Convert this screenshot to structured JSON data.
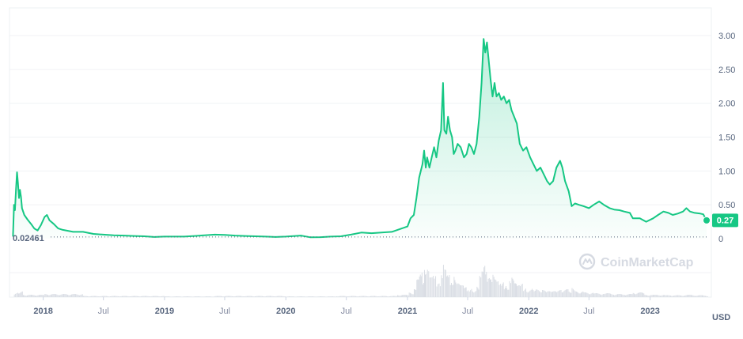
{
  "chart_data": {
    "type": "area",
    "x_format": "YYYY-MM-DD",
    "ylim": [
      0,
      3.0
    ],
    "y_ticks": [
      "0",
      "0.50",
      "1.00",
      "1.50",
      "2.00",
      "2.50",
      "3.00"
    ],
    "y_tick_values": [
      0,
      0.5,
      1.0,
      1.5,
      2.0,
      2.5,
      3.0
    ],
    "x_ticks": [
      {
        "label": "2018",
        "date": "2018-01-01",
        "major": true
      },
      {
        "label": "Jul",
        "date": "2018-07-01",
        "major": false
      },
      {
        "label": "2019",
        "date": "2019-01-01",
        "major": true
      },
      {
        "label": "Jul",
        "date": "2019-07-01",
        "major": false
      },
      {
        "label": "2020",
        "date": "2020-01-01",
        "major": true
      },
      {
        "label": "Jul",
        "date": "2020-07-01",
        "major": false
      },
      {
        "label": "2021",
        "date": "2021-01-01",
        "major": true
      },
      {
        "label": "Jul",
        "date": "2021-07-01",
        "major": false
      },
      {
        "label": "2022",
        "date": "2022-01-01",
        "major": true
      },
      {
        "label": "Jul",
        "date": "2022-07-01",
        "major": false
      },
      {
        "label": "2023",
        "date": "2023-01-01",
        "major": true
      }
    ],
    "x_range": [
      "2017-10-01",
      "2023-06-20"
    ],
    "unit": "USD",
    "reference_line": {
      "label": "0.02461",
      "value": 0.02461
    },
    "current_price": {
      "label": "0.27",
      "value": 0.27
    },
    "line_color": "#16c784",
    "grid": true,
    "series": [
      {
        "points": [
          [
            "2017-10-02",
            0.03
          ],
          [
            "2017-10-05",
            0.5
          ],
          [
            "2017-10-08",
            0.42
          ],
          [
            "2017-10-11",
            0.72
          ],
          [
            "2017-10-14",
            0.98
          ],
          [
            "2017-10-17",
            0.82
          ],
          [
            "2017-10-20",
            0.6
          ],
          [
            "2017-10-23",
            0.72
          ],
          [
            "2017-10-26",
            0.62
          ],
          [
            "2017-10-29",
            0.45
          ],
          [
            "2017-11-05",
            0.35
          ],
          [
            "2017-11-15",
            0.28
          ],
          [
            "2017-11-25",
            0.22
          ],
          [
            "2017-12-05",
            0.15
          ],
          [
            "2017-12-15",
            0.12
          ],
          [
            "2017-12-25",
            0.2
          ],
          [
            "2018-01-05",
            0.32
          ],
          [
            "2018-01-12",
            0.35
          ],
          [
            "2018-01-20",
            0.27
          ],
          [
            "2018-02-01",
            0.22
          ],
          [
            "2018-02-15",
            0.15
          ],
          [
            "2018-03-01",
            0.13
          ],
          [
            "2018-04-01",
            0.1
          ],
          [
            "2018-05-01",
            0.1
          ],
          [
            "2018-06-01",
            0.07
          ],
          [
            "2018-07-01",
            0.06
          ],
          [
            "2018-08-01",
            0.05
          ],
          [
            "2018-09-01",
            0.045
          ],
          [
            "2018-10-01",
            0.04
          ],
          [
            "2018-11-01",
            0.035
          ],
          [
            "2018-12-01",
            0.025
          ],
          [
            "2019-01-01",
            0.03
          ],
          [
            "2019-02-01",
            0.03
          ],
          [
            "2019-03-01",
            0.03
          ],
          [
            "2019-04-01",
            0.04
          ],
          [
            "2019-05-01",
            0.05
          ],
          [
            "2019-06-01",
            0.06
          ],
          [
            "2019-07-01",
            0.055
          ],
          [
            "2019-08-01",
            0.045
          ],
          [
            "2019-09-01",
            0.04
          ],
          [
            "2019-10-01",
            0.035
          ],
          [
            "2019-11-01",
            0.03
          ],
          [
            "2019-12-01",
            0.025
          ],
          [
            "2020-01-01",
            0.03
          ],
          [
            "2020-02-15",
            0.045
          ],
          [
            "2020-03-15",
            0.02
          ],
          [
            "2020-04-15",
            0.022
          ],
          [
            "2020-05-15",
            0.03
          ],
          [
            "2020-06-15",
            0.035
          ],
          [
            "2020-07-15",
            0.06
          ],
          [
            "2020-08-15",
            0.09
          ],
          [
            "2020-09-15",
            0.08
          ],
          [
            "2020-10-15",
            0.09
          ],
          [
            "2020-11-15",
            0.1
          ],
          [
            "2020-12-15",
            0.15
          ],
          [
            "2021-01-01",
            0.18
          ],
          [
            "2021-01-10",
            0.3
          ],
          [
            "2021-01-20",
            0.35
          ],
          [
            "2021-01-28",
            0.6
          ],
          [
            "2021-02-05",
            0.9
          ],
          [
            "2021-02-15",
            1.1
          ],
          [
            "2021-02-20",
            1.3
          ],
          [
            "2021-02-25",
            1.05
          ],
          [
            "2021-03-01",
            1.2
          ],
          [
            "2021-03-08",
            1.05
          ],
          [
            "2021-03-15",
            1.2
          ],
          [
            "2021-03-22",
            1.35
          ],
          [
            "2021-03-29",
            1.2
          ],
          [
            "2021-04-05",
            1.45
          ],
          [
            "2021-04-12",
            1.6
          ],
          [
            "2021-04-18",
            2.3
          ],
          [
            "2021-04-22",
            1.6
          ],
          [
            "2021-04-28",
            1.55
          ],
          [
            "2021-05-03",
            1.8
          ],
          [
            "2021-05-09",
            1.6
          ],
          [
            "2021-05-15",
            1.5
          ],
          [
            "2021-05-20",
            1.25
          ],
          [
            "2021-05-25",
            1.3
          ],
          [
            "2021-06-01",
            1.4
          ],
          [
            "2021-06-10",
            1.35
          ],
          [
            "2021-06-20",
            1.2
          ],
          [
            "2021-06-28",
            1.25
          ],
          [
            "2021-07-05",
            1.4
          ],
          [
            "2021-07-12",
            1.35
          ],
          [
            "2021-07-20",
            1.25
          ],
          [
            "2021-07-28",
            1.4
          ],
          [
            "2021-08-05",
            1.8
          ],
          [
            "2021-08-12",
            2.3
          ],
          [
            "2021-08-18",
            2.95
          ],
          [
            "2021-08-23",
            2.75
          ],
          [
            "2021-08-28",
            2.9
          ],
          [
            "2021-09-03",
            2.6
          ],
          [
            "2021-09-08",
            2.35
          ],
          [
            "2021-09-14",
            2.1
          ],
          [
            "2021-09-20",
            2.3
          ],
          [
            "2021-09-26",
            2.1
          ],
          [
            "2021-10-03",
            2.15
          ],
          [
            "2021-10-10",
            2.05
          ],
          [
            "2021-10-18",
            2.1
          ],
          [
            "2021-10-26",
            2.0
          ],
          [
            "2021-11-03",
            2.05
          ],
          [
            "2021-11-10",
            1.9
          ],
          [
            "2021-11-18",
            1.8
          ],
          [
            "2021-11-26",
            1.7
          ],
          [
            "2021-12-05",
            1.4
          ],
          [
            "2021-12-15",
            1.3
          ],
          [
            "2021-12-25",
            1.35
          ],
          [
            "2022-01-05",
            1.2
          ],
          [
            "2022-01-15",
            1.1
          ],
          [
            "2022-01-25",
            1.0
          ],
          [
            "2022-02-05",
            1.05
          ],
          [
            "2022-02-15",
            0.95
          ],
          [
            "2022-02-25",
            0.85
          ],
          [
            "2022-03-05",
            0.8
          ],
          [
            "2022-03-15",
            0.85
          ],
          [
            "2022-03-25",
            1.05
          ],
          [
            "2022-04-05",
            1.15
          ],
          [
            "2022-04-12",
            1.05
          ],
          [
            "2022-04-20",
            0.85
          ],
          [
            "2022-05-01",
            0.7
          ],
          [
            "2022-05-10",
            0.48
          ],
          [
            "2022-05-20",
            0.52
          ],
          [
            "2022-06-01",
            0.5
          ],
          [
            "2022-06-15",
            0.48
          ],
          [
            "2022-07-01",
            0.45
          ],
          [
            "2022-07-15",
            0.5
          ],
          [
            "2022-08-01",
            0.55
          ],
          [
            "2022-08-15",
            0.5
          ],
          [
            "2022-09-01",
            0.45
          ],
          [
            "2022-09-15",
            0.43
          ],
          [
            "2022-10-01",
            0.42
          ],
          [
            "2022-10-15",
            0.4
          ],
          [
            "2022-11-01",
            0.38
          ],
          [
            "2022-11-10",
            0.3
          ],
          [
            "2022-12-01",
            0.3
          ],
          [
            "2022-12-20",
            0.25
          ],
          [
            "2023-01-10",
            0.3
          ],
          [
            "2023-01-25",
            0.35
          ],
          [
            "2023-02-10",
            0.4
          ],
          [
            "2023-02-25",
            0.38
          ],
          [
            "2023-03-10",
            0.35
          ],
          [
            "2023-03-25",
            0.37
          ],
          [
            "2023-04-10",
            0.4
          ],
          [
            "2023-04-20",
            0.45
          ],
          [
            "2023-05-01",
            0.4
          ],
          [
            "2023-05-15",
            0.38
          ],
          [
            "2023-06-01",
            0.37
          ],
          [
            "2023-06-10",
            0.36
          ],
          [
            "2023-06-20",
            0.27
          ]
        ]
      }
    ],
    "volume": {
      "color": "#d9dde4",
      "points": [
        [
          "2017-10-05",
          0.12
        ],
        [
          "2017-10-15",
          0.15
        ],
        [
          "2017-11-01",
          0.06
        ],
        [
          "2018-01-05",
          0.08
        ],
        [
          "2018-05-01",
          0.03
        ],
        [
          "2019-01-01",
          0.02
        ],
        [
          "2019-06-01",
          0.03
        ],
        [
          "2020-01-01",
          0.02
        ],
        [
          "2020-06-01",
          0.03
        ],
        [
          "2020-12-01",
          0.06
        ],
        [
          "2021-01-05",
          0.12
        ],
        [
          "2021-01-20",
          0.2
        ],
        [
          "2021-01-28",
          0.45
        ],
        [
          "2021-02-05",
          0.6
        ],
        [
          "2021-02-10",
          0.75
        ],
        [
          "2021-02-15",
          0.55
        ],
        [
          "2021-02-20",
          0.9
        ],
        [
          "2021-02-25",
          0.65
        ],
        [
          "2021-03-01",
          0.7
        ],
        [
          "2021-03-08",
          0.5
        ],
        [
          "2021-03-15",
          0.55
        ],
        [
          "2021-03-22",
          0.6
        ],
        [
          "2021-03-29",
          0.45
        ],
        [
          "2021-04-05",
          0.5
        ],
        [
          "2021-04-12",
          0.65
        ],
        [
          "2021-04-18",
          0.85
        ],
        [
          "2021-04-22",
          0.7
        ],
        [
          "2021-04-28",
          0.55
        ],
        [
          "2021-05-03",
          0.6
        ],
        [
          "2021-05-09",
          0.45
        ],
        [
          "2021-05-15",
          0.5
        ],
        [
          "2021-05-20",
          0.65
        ],
        [
          "2021-05-25",
          0.4
        ],
        [
          "2021-06-01",
          0.35
        ],
        [
          "2021-06-10",
          0.3
        ],
        [
          "2021-06-20",
          0.25
        ],
        [
          "2021-06-28",
          0.2
        ],
        [
          "2021-07-05",
          0.25
        ],
        [
          "2021-07-15",
          0.2
        ],
        [
          "2021-07-28",
          0.3
        ],
        [
          "2021-08-05",
          0.55
        ],
        [
          "2021-08-12",
          0.65
        ],
        [
          "2021-08-18",
          0.8
        ],
        [
          "2021-08-23",
          0.7
        ],
        [
          "2021-08-28",
          0.6
        ],
        [
          "2021-09-03",
          0.75
        ],
        [
          "2021-09-08",
          0.55
        ],
        [
          "2021-09-14",
          0.6
        ],
        [
          "2021-09-20",
          0.45
        ],
        [
          "2021-09-26",
          0.4
        ],
        [
          "2021-10-03",
          0.35
        ],
        [
          "2021-10-10",
          0.4
        ],
        [
          "2021-10-18",
          0.35
        ],
        [
          "2021-10-26",
          0.3
        ],
        [
          "2021-11-03",
          0.45
        ],
        [
          "2021-11-10",
          0.5
        ],
        [
          "2021-11-18",
          0.35
        ],
        [
          "2021-11-26",
          0.3
        ],
        [
          "2021-12-05",
          0.35
        ],
        [
          "2021-12-15",
          0.25
        ],
        [
          "2021-12-25",
          0.2
        ],
        [
          "2022-01-10",
          0.25
        ],
        [
          "2022-01-25",
          0.2
        ],
        [
          "2022-02-10",
          0.18
        ],
        [
          "2022-02-25",
          0.15
        ],
        [
          "2022-03-10",
          0.15
        ],
        [
          "2022-03-25",
          0.18
        ],
        [
          "2022-04-10",
          0.2
        ],
        [
          "2022-05-01",
          0.18
        ],
        [
          "2022-05-10",
          0.25
        ],
        [
          "2022-05-20",
          0.15
        ],
        [
          "2022-06-15",
          0.12
        ],
        [
          "2022-07-15",
          0.1
        ],
        [
          "2022-08-15",
          0.1
        ],
        [
          "2022-09-15",
          0.08
        ],
        [
          "2022-10-15",
          0.08
        ],
        [
          "2022-11-10",
          0.12
        ],
        [
          "2022-12-15",
          0.06
        ],
        [
          "2023-01-15",
          0.06
        ],
        [
          "2023-02-15",
          0.05
        ],
        [
          "2023-03-15",
          0.05
        ],
        [
          "2023-04-15",
          0.06
        ],
        [
          "2023-05-15",
          0.05
        ],
        [
          "2023-06-15",
          0.04
        ]
      ]
    }
  },
  "watermark": {
    "text": "CoinMarketCap"
  }
}
